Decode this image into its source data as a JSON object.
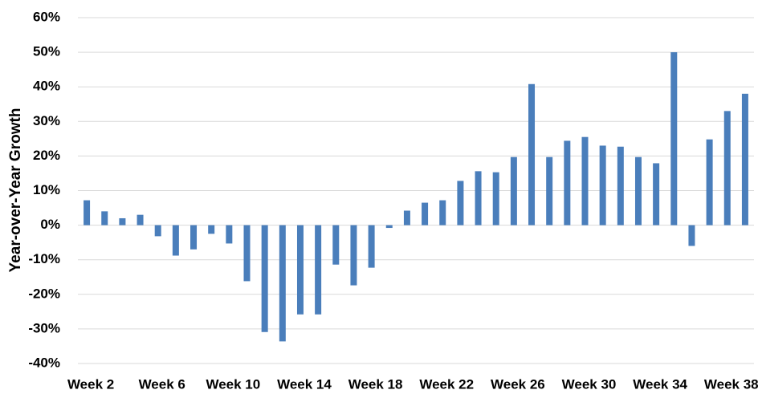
{
  "chart_data": {
    "type": "bar",
    "y_label": "Year-over-Year Growth",
    "categories": [
      "Week 2",
      null,
      null,
      null,
      "Week 6",
      null,
      null,
      null,
      "Week 10",
      null,
      null,
      null,
      "Week 14",
      null,
      null,
      null,
      "Week 18",
      null,
      null,
      null,
      "Week 22",
      null,
      null,
      null,
      "Week 26",
      null,
      null,
      null,
      "Week 30",
      null,
      null,
      null,
      "Week 34",
      null,
      null,
      null,
      "Week 38",
      null
    ],
    "values": [
      7.2,
      4,
      2,
      3,
      -3.2,
      -8.8,
      -7,
      -2.5,
      -5.3,
      -16.2,
      -30.9,
      -33.6,
      -25.8,
      -25.8,
      -11.4,
      -17.4,
      -12.3,
      -0.8,
      4.2,
      6.5,
      7.2,
      12.8,
      15.6,
      15.3,
      19.7,
      40.8,
      19.7,
      24.4,
      25.5,
      23,
      22.7,
      19.7,
      17.9,
      50,
      -6,
      24.8,
      33,
      38
    ],
    "color": "#4a7ebb",
    "ylim": [
      -40,
      60
    ],
    "yticks": [
      {
        "value": -40,
        "label": "-40%"
      },
      {
        "value": -30,
        "label": "-30%"
      },
      {
        "value": -20,
        "label": "-20%"
      },
      {
        "value": -10,
        "label": "-10%"
      },
      {
        "value": 0,
        "label": "0%"
      },
      {
        "value": 10,
        "label": "10%"
      },
      {
        "value": 20,
        "label": "20%"
      },
      {
        "value": 30,
        "label": "30%"
      },
      {
        "value": 40,
        "label": "40%"
      },
      {
        "value": 50,
        "label": "50%"
      },
      {
        "value": 60,
        "label": "60%"
      }
    ],
    "grid": true
  }
}
